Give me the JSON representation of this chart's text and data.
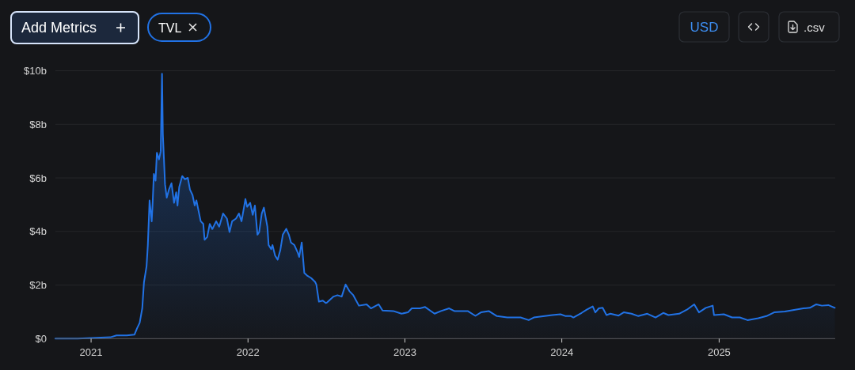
{
  "chart_data": {
    "type": "area",
    "annotations": [
      "Add Metrics",
      "TVL",
      "USD",
      ".csv"
    ],
    "color": "#2172e5",
    "x": [
      "2020-10-10",
      "2020-12-01",
      "2021-02-15",
      "2021-03-01",
      "2021-03-25",
      "2021-04-12",
      "2021-04-18",
      "2021-04-24",
      "2021-04-30",
      "2021-05-04",
      "2021-05-10",
      "2021-05-13",
      "2021-05-17",
      "2021-05-22",
      "2021-05-24",
      "2021-05-27",
      "2021-05-31",
      "2021-06-03",
      "2021-06-08",
      "2021-06-12",
      "2021-06-15",
      "2021-06-17",
      "2021-06-22",
      "2021-06-26",
      "2021-07-01",
      "2021-07-07",
      "2021-07-13",
      "2021-07-18",
      "2021-07-21",
      "2021-07-25",
      "2021-08-01",
      "2021-08-07",
      "2021-08-14",
      "2021-08-19",
      "2021-08-25",
      "2021-08-30",
      "2021-09-03",
      "2021-09-08",
      "2021-09-13",
      "2021-09-19",
      "2021-09-22",
      "2021-09-28",
      "2021-10-04",
      "2021-10-10",
      "2021-10-19",
      "2021-10-26",
      "2021-11-04",
      "2021-11-13",
      "2021-11-19",
      "2021-11-25",
      "2021-12-04",
      "2021-12-11",
      "2021-12-17",
      "2021-12-26",
      "2021-12-30",
      "2022-01-06",
      "2022-01-12",
      "2022-01-17",
      "2022-01-23",
      "2022-01-27",
      "2022-02-02",
      "2022-02-07",
      "2022-02-15",
      "2022-02-18",
      "2022-02-24",
      "2022-02-27",
      "2022-03-05",
      "2022-03-11",
      "2022-03-17",
      "2022-03-23",
      "2022-03-31",
      "2022-04-06",
      "2022-04-11",
      "2022-04-19",
      "2022-04-27",
      "2022-04-30",
      "2022-05-06",
      "2022-05-12",
      "2022-05-18",
      "2022-05-28",
      "2022-06-06",
      "2022-06-09",
      "2022-06-15",
      "2022-06-24",
      "2022-07-01",
      "2022-07-04",
      "2022-07-19",
      "2022-07-28",
      "2022-08-07",
      "2022-08-16",
      "2022-08-25",
      "2022-09-03",
      "2022-09-16",
      "2022-10-04",
      "2022-10-14",
      "2022-11-01",
      "2022-11-10",
      "2022-12-05",
      "2022-12-24",
      "2023-01-08",
      "2023-01-17",
      "2023-02-05",
      "2023-02-17",
      "2023-03-11",
      "2023-03-26",
      "2023-04-14",
      "2023-04-26",
      "2023-05-27",
      "2023-06-14",
      "2023-06-27",
      "2023-07-15",
      "2023-08-03",
      "2023-08-27",
      "2023-09-27",
      "2023-10-16",
      "2023-10-28",
      "2023-11-22",
      "2023-12-10",
      "2023-12-29",
      "2024-01-10",
      "2024-01-22",
      "2024-01-28",
      "2024-02-16",
      "2024-02-28",
      "2024-03-13",
      "2024-03-19",
      "2024-03-27",
      "2024-04-05",
      "2024-04-14",
      "2024-04-23",
      "2024-05-12",
      "2024-05-24",
      "2024-06-11",
      "2024-06-27",
      "2024-07-18",
      "2024-08-06",
      "2024-08-24",
      "2024-09-05",
      "2024-09-30",
      "2024-10-18",
      "2024-11-04",
      "2024-11-15",
      "2024-12-01",
      "2024-12-17",
      "2024-12-20",
      "2025-01-12",
      "2025-01-31",
      "2025-02-18",
      "2025-03-08",
      "2025-04-02",
      "2025-04-21",
      "2025-05-09",
      "2025-06-03",
      "2025-06-27",
      "2025-07-16",
      "2025-07-31",
      "2025-08-15",
      "2025-08-28",
      "2025-09-12",
      "2025-09-27"
    ],
    "values": [
      0,
      0,
      0.05,
      0.12,
      0.12,
      0.15,
      0.39,
      0.59,
      1.13,
      2.1,
      2.7,
      3.49,
      5.16,
      4.38,
      5.0,
      6.15,
      5.9,
      6.94,
      6.69,
      7.0,
      9.89,
      7.62,
      5.76,
      5.26,
      5.56,
      5.8,
      5.07,
      5.46,
      4.97,
      5.66,
      6.07,
      5.95,
      6.0,
      5.56,
      5.36,
      4.97,
      5.16,
      4.77,
      4.38,
      4.28,
      3.69,
      3.79,
      4.28,
      4.09,
      4.38,
      4.18,
      4.67,
      4.48,
      3.98,
      4.38,
      4.48,
      4.67,
      4.38,
      5.21,
      4.92,
      5.07,
      4.62,
      4.97,
      3.88,
      3.98,
      4.67,
      4.89,
      4.18,
      3.49,
      3.34,
      3.49,
      3.1,
      2.95,
      3.29,
      3.88,
      4.1,
      3.88,
      3.59,
      3.49,
      3.2,
      3.05,
      3.59,
      2.45,
      2.36,
      2.26,
      2.12,
      2.02,
      1.38,
      1.42,
      1.33,
      1.35,
      1.57,
      1.62,
      1.57,
      2.02,
      1.77,
      1.62,
      1.23,
      1.28,
      1.13,
      1.28,
      1.05,
      1.03,
      0.93,
      0.98,
      1.13,
      1.13,
      1.18,
      0.93,
      1.03,
      1.13,
      1.03,
      1.03,
      0.85,
      0.98,
      1.03,
      0.84,
      0.79,
      0.79,
      0.69,
      0.79,
      0.84,
      0.88,
      0.91,
      0.84,
      0.84,
      0.79,
      0.96,
      1.08,
      1.2,
      0.98,
      1.13,
      1.15,
      0.88,
      0.93,
      0.86,
      0.98,
      0.93,
      0.84,
      0.93,
      0.79,
      0.96,
      0.88,
      0.93,
      1.08,
      1.28,
      0.98,
      1.15,
      1.23,
      0.88,
      0.91,
      0.79,
      0.79,
      0.69,
      0.76,
      0.84,
      0.98,
      1.01,
      1.08,
      1.13,
      1.15,
      1.28,
      1.23,
      1.25,
      1.15
    ],
    "xlim": [
      "2020-10-10",
      "2025-09-28"
    ],
    "xticks": [
      "2021",
      "2022",
      "2023",
      "2024",
      "2025"
    ],
    "ylim": [
      0,
      10
    ],
    "yticks": [
      {
        "value": 0,
        "label": "$0"
      },
      {
        "value": 2,
        "label": "$2b"
      },
      {
        "value": 4,
        "label": "$4b"
      },
      {
        "value": 6,
        "label": "$6b"
      },
      {
        "value": 8,
        "label": "$8b"
      },
      {
        "value": 10,
        "label": "$10b"
      }
    ],
    "grid": "y"
  }
}
